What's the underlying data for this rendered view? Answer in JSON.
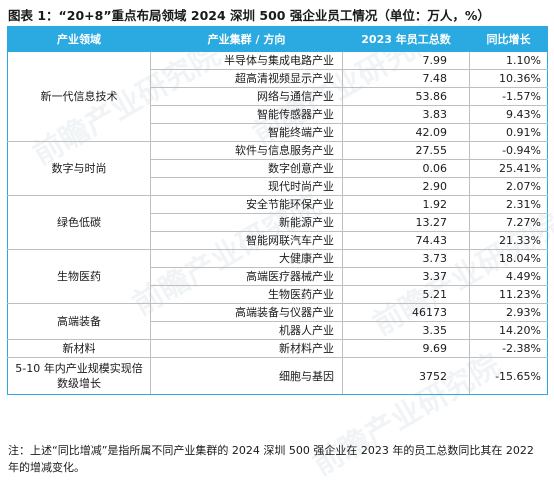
{
  "title": "图表 1：“20+8”重点布局领域 2024 深圳 500 强企业员工情况（单位：万人，%）",
  "table": {
    "headers": [
      "产业领域",
      "产业集群 / 方向",
      "2023 年员工总数",
      "同比增长"
    ],
    "groups": [
      {
        "field": "新一代信息技术",
        "rows": [
          {
            "industry": "半导体与集成电路产业",
            "employees": "7.99",
            "growth": "1.10%"
          },
          {
            "industry": "超高清视频显示产业",
            "employees": "7.48",
            "growth": "10.36%"
          },
          {
            "industry": "网络与通信产业",
            "employees": "53.86",
            "growth": "-1.57%"
          },
          {
            "industry": "智能传感器产业",
            "employees": "3.83",
            "growth": "9.43%"
          },
          {
            "industry": "智能终端产业",
            "employees": "42.09",
            "growth": "0.91%"
          }
        ]
      },
      {
        "field": "数字与时尚",
        "rows": [
          {
            "industry": "软件与信息服务产业",
            "employees": "27.55",
            "growth": "-0.94%"
          },
          {
            "industry": "数字创意产业",
            "employees": "0.06",
            "growth": "25.41%"
          },
          {
            "industry": "现代时尚产业",
            "employees": "2.90",
            "growth": "2.07%"
          }
        ]
      },
      {
        "field": "绿色低碳",
        "rows": [
          {
            "industry": "安全节能环保产业",
            "employees": "1.92",
            "growth": "2.31%"
          },
          {
            "industry": "新能源产业",
            "employees": "13.27",
            "growth": "7.27%"
          },
          {
            "industry": "智能网联汽车产业",
            "employees": "74.43",
            "growth": "21.33%"
          }
        ]
      },
      {
        "field": "生物医药",
        "rows": [
          {
            "industry": "大健康产业",
            "employees": "3.73",
            "growth": "18.04%"
          },
          {
            "industry": "高端医疗器械产业",
            "employees": "3.37",
            "growth": "4.49%"
          },
          {
            "industry": "生物医药产业",
            "employees": "5.21",
            "growth": "11.23%"
          }
        ]
      },
      {
        "field": "高端装备",
        "rows": [
          {
            "industry": "高端装备与仪器产业",
            "employees": "46173",
            "growth": "2.93%"
          },
          {
            "industry": "机器人产业",
            "employees": "3.35",
            "growth": "14.20%"
          }
        ]
      },
      {
        "field": "新材料",
        "rows": [
          {
            "industry": "新材料产业",
            "employees": "9.69",
            "growth": "-2.38%"
          }
        ]
      },
      {
        "field": "5-10 年内产业规模实现倍数级增长",
        "rows": [
          {
            "industry": "细胞与基因",
            "employees": "3752",
            "growth": "-15.65%"
          }
        ]
      }
    ]
  },
  "note": "注：上述“同比增减”是指所属不同产业集群的 2024 深圳 500 强企业在 2023 年的员工总数同比其在 2022 年的增减变化。",
  "watermark": "前瞻产业研究院"
}
